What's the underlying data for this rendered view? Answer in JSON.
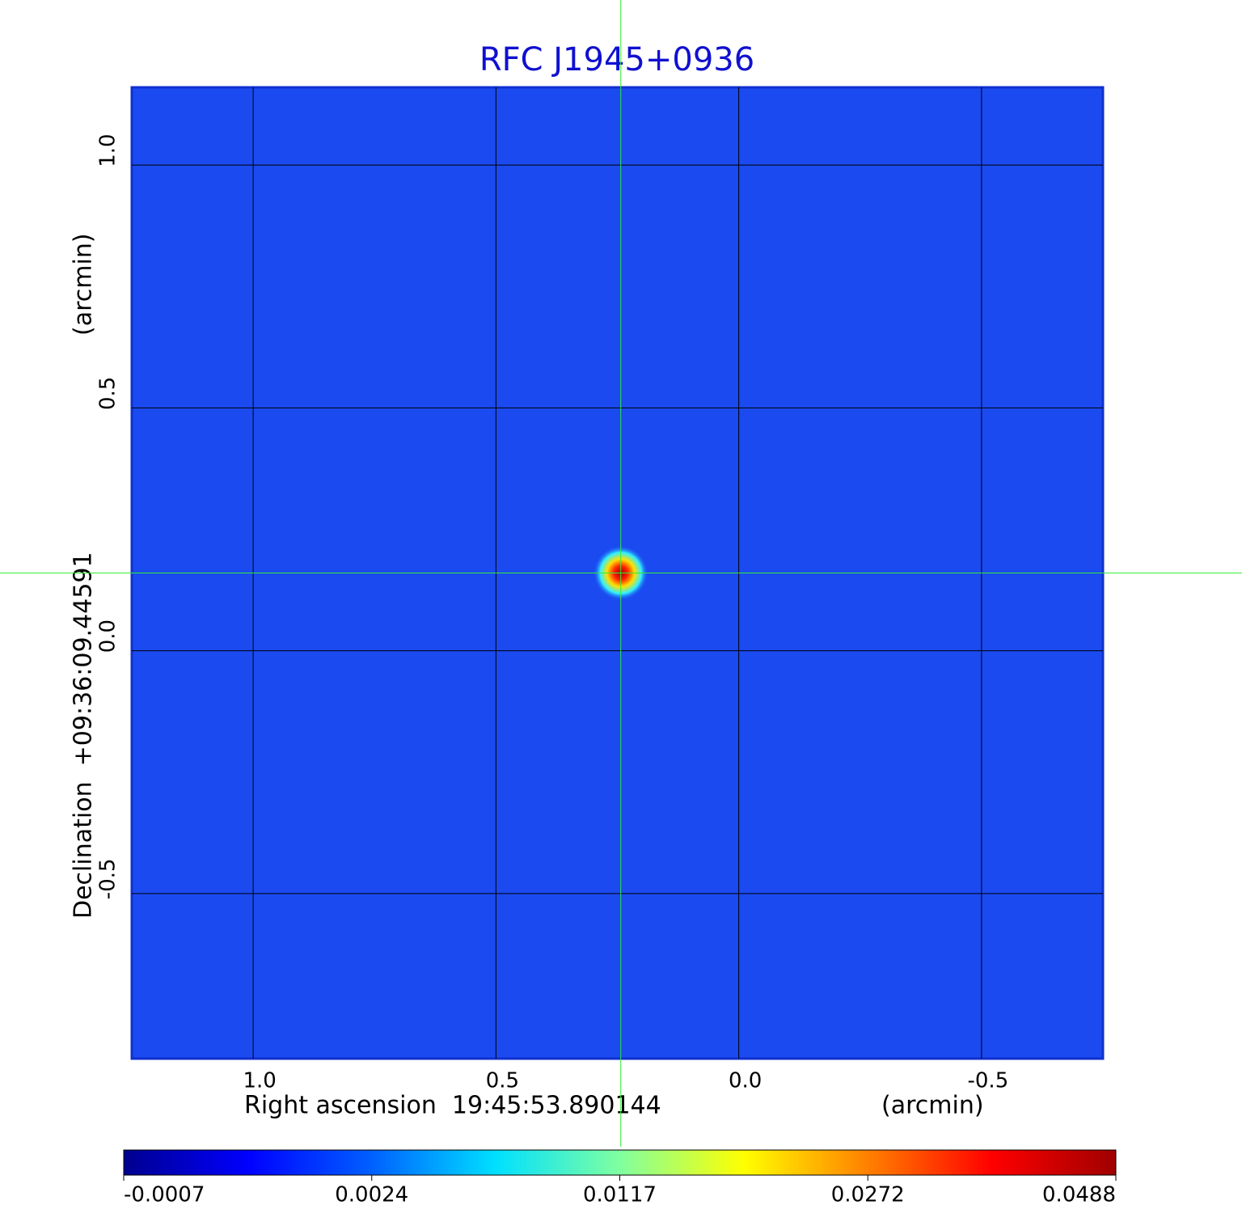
{
  "chart_data": {
    "type": "image",
    "title": "RFC J1945+0936",
    "title_color": "#1010d0",
    "xlabel": "Right ascension  19:45:53.890144",
    "xunit": "(arcmin)",
    "ylabel": "Declination  +09:36:09.44591",
    "yunit": "(arcmin)",
    "xlim": [
      1.25,
      -0.75
    ],
    "ylim": [
      -0.84,
      1.16
    ],
    "xticks": [
      {
        "value": 1,
        "label": "1.0"
      },
      0.5,
      {
        "value": 0,
        "label": "0.0"
      },
      -0.5
    ],
    "yticks": [
      {
        "value": 1,
        "label": "1.0"
      },
      0.5,
      {
        "value": 0,
        "label": "0.0"
      },
      -0.5
    ],
    "grid": true,
    "crosshair": {
      "x": 0.243,
      "y": 0.16,
      "color": "#33ee33"
    },
    "colorbar": {
      "ticks": [
        -0.0007,
        0.0024,
        0.0117,
        0.0272,
        0.0488
      ],
      "colors": [
        "#00008f",
        "#0000ff",
        "#0060ff",
        "#00e0ff",
        "#80ffa0",
        "#ffff00",
        "#ff8000",
        "#ff0000",
        "#a00000"
      ]
    }
  }
}
